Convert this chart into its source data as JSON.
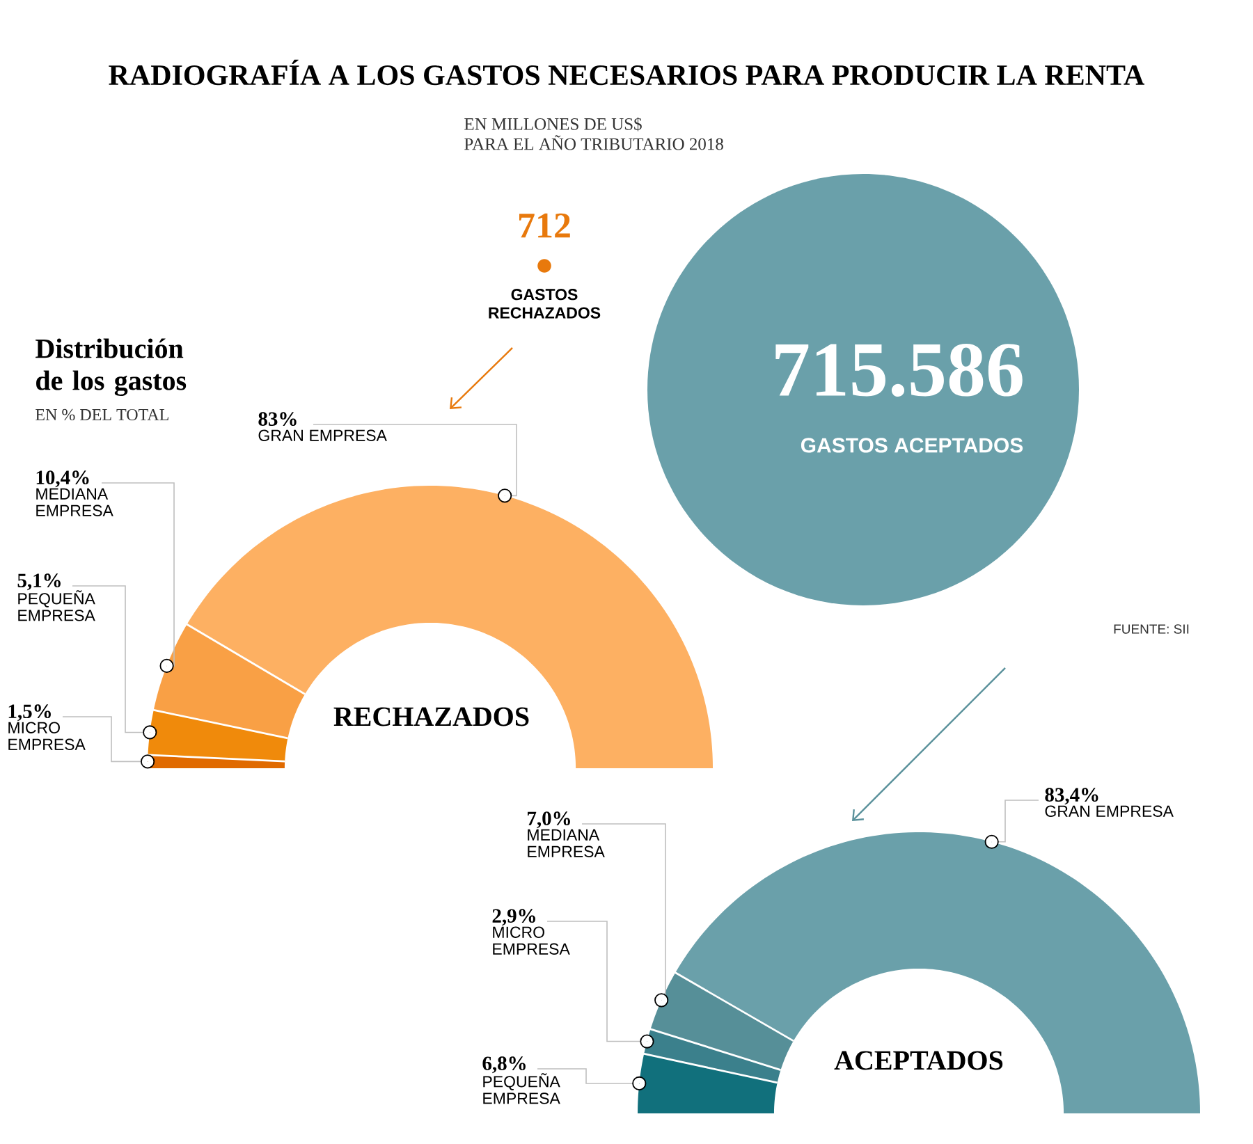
{
  "chart_data": [
    {
      "type": "other",
      "title": "RADIOGRAFÍA A LOS GASTOS NECESARIOS PARA PRODUCIR LA RENTA",
      "subtitle": "EN MILLONES DE US$ PARA EL AÑO TRIBUTARIO 2018",
      "categories": [
        "GASTOS RECHAZADOS",
        "GASTOS ACEPTADOS"
      ],
      "values": [
        712,
        715586
      ],
      "value_labels": [
        "712",
        "715.586"
      ],
      "colors": [
        "#e8790c",
        "#6aa0aa"
      ],
      "annotations": [
        "FUENTE: SII"
      ]
    },
    {
      "type": "donut",
      "title": "Distribución de los gastos",
      "subtitle": "EN % DEL TOTAL",
      "annotations": [
        "RECHAZADOS"
      ],
      "categories": [
        "GRAN EMPRESA",
        "MEDIANA EMPRESA",
        "PEQUEÑA EMPRESA",
        "MICRO EMPRESA"
      ],
      "values": [
        83,
        10.4,
        5.1,
        1.5
      ],
      "value_labels": [
        "83%",
        "10,4%",
        "5,1%",
        "1,5%"
      ],
      "colors": [
        "#fdb062",
        "#f9a045",
        "#f08a0b",
        "#e06a00"
      ]
    },
    {
      "type": "donut",
      "annotations": [
        "ACEPTADOS"
      ],
      "categories": [
        "GRAN EMPRESA",
        "MEDIANA EMPRESA",
        "MICRO EMPRESA",
        "PEQUEÑA EMPRESA"
      ],
      "values": [
        83.4,
        7.0,
        2.9,
        6.8
      ],
      "value_labels": [
        "83,4%",
        "7,0%",
        "2,9%",
        "6,8%"
      ],
      "colors": [
        "#6aa0aa",
        "#568f98",
        "#3b808c",
        "#11707c"
      ]
    }
  ]
}
